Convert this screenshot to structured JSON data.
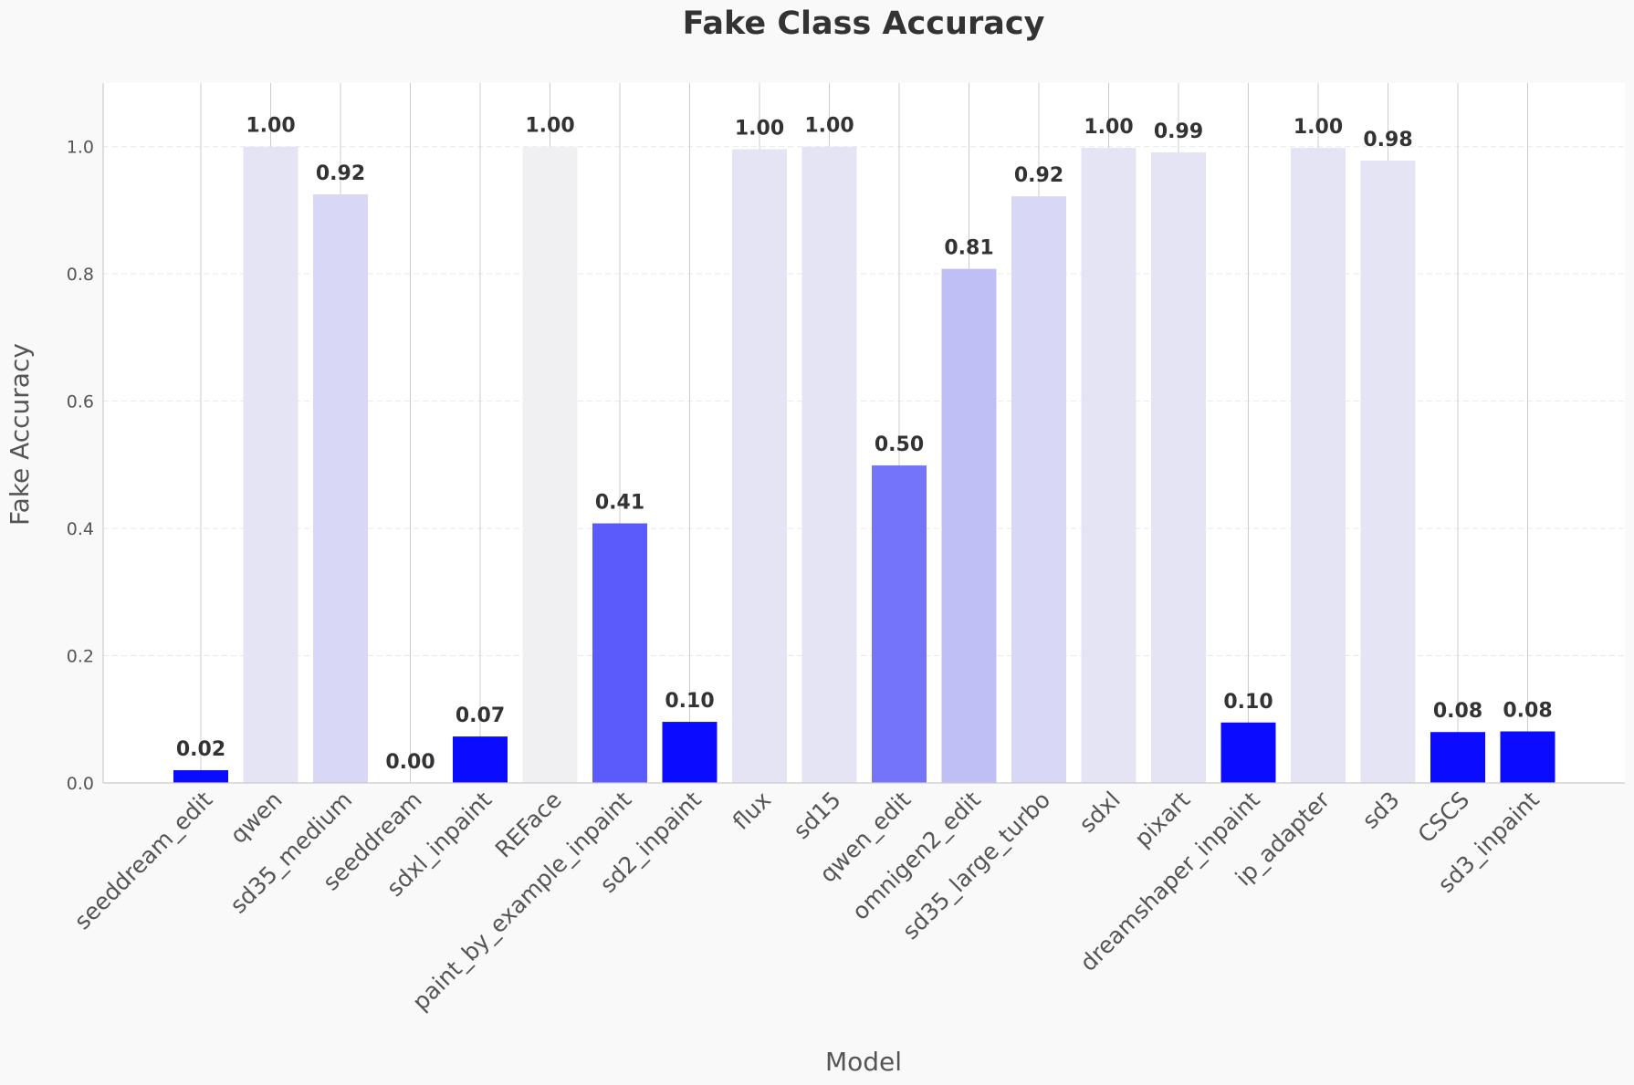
{
  "chart_data": {
    "type": "bar",
    "title": "Fake Class Accuracy",
    "xlabel": "Model",
    "ylabel": "Fake Accuracy",
    "ylim": [
      0,
      1.1
    ],
    "yticks": [
      "0.0",
      "0.2",
      "0.4",
      "0.6",
      "0.8",
      "1.0"
    ],
    "grid": "y-dashed, x-solid",
    "categories": [
      "seeddream_edit",
      "qwen",
      "sd35_medium",
      "seeddream",
      "sdxl_inpaint",
      "REFace",
      "paint_by_example_inpaint",
      "sd2_inpaint",
      "flux",
      "sd15",
      "qwen_edit",
      "omnigen2_edit",
      "sd35_large_turbo",
      "sdxl",
      "pixart",
      "dreamshaper_inpaint",
      "ip_adapter",
      "sd3",
      "CSCS",
      "sd3_inpaint"
    ],
    "values": [
      0.02,
      1.0,
      0.925,
      0.0,
      0.073,
      1.0,
      0.408,
      0.096,
      0.996,
      1.0,
      0.499,
      0.808,
      0.922,
      0.998,
      0.991,
      0.095,
      0.998,
      0.978,
      0.08,
      0.081
    ],
    "labels": [
      "0.02",
      "1.00",
      "0.92",
      "0.00",
      "0.07",
      "1.00",
      "0.41",
      "0.10",
      "1.00",
      "1.00",
      "0.50",
      "0.81",
      "0.92",
      "1.00",
      "0.99",
      "0.10",
      "1.00",
      "0.98",
      "0.08",
      "0.08"
    ],
    "colors": [
      "#0b0bff",
      "#e4e4f4",
      "#d8d8f6",
      "#f0f0f3",
      "#0b0bff",
      "#f0f0f3",
      "#5b5bfb",
      "#0b0bff",
      "#e4e4f4",
      "#e4e4f4",
      "#7474fa",
      "#bfbff6",
      "#d8d8f6",
      "#e4e4f4",
      "#e4e4f4",
      "#0b0bff",
      "#e4e4f4",
      "#e4e4f4",
      "#0b0bff",
      "#0b0bff"
    ]
  }
}
